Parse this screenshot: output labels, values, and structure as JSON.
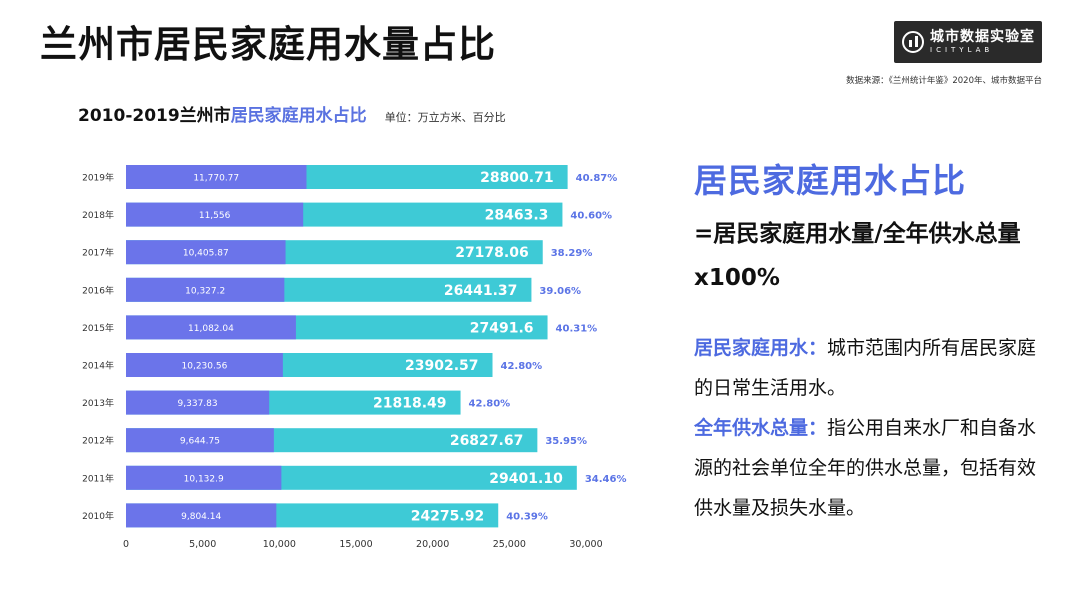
{
  "page": {
    "title": "兰州市居民家庭用水量占比",
    "source": "数据来源：《兰州统计年鉴》2020年、城市数据平台",
    "logo": {
      "cn": "城市数据实验室",
      "en": "ICITYLAB"
    }
  },
  "chart_header": {
    "prefix": "2010-2019兰州市",
    "highlight": "居民家庭用水占比",
    "unit": "单位：万立方米、百分比"
  },
  "side": {
    "title": "居民家庭用水占比",
    "formula": "=居民家庭用水量/全年供水总量x100%",
    "def1_term": "居民家庭用水：",
    "def1_text": "城市范围内所有居民家庭的日常生活用水。",
    "def2_term": "全年供水总量：",
    "def2_text": "指公用自来水厂和自备水源的社会单位全年的供水总量，包括有效供水量及损失水量。"
  },
  "colors": {
    "household": "#6b74ea",
    "total": "#3ecad6",
    "pct": "#5b74e6",
    "accent": "#4d6ae0"
  },
  "chart_data": {
    "type": "bar",
    "orientation": "horizontal",
    "categories": [
      "2019年",
      "2018年",
      "2017年",
      "2016年",
      "2015年",
      "2014年",
      "2013年",
      "2012年",
      "2011年",
      "2010年"
    ],
    "series": [
      {
        "values": [
          11770.77,
          11556,
          10405.87,
          10327.2,
          11082.04,
          10230.56,
          9337.83,
          9644.75,
          10132.9,
          9804.14
        ],
        "labels": [
          "11,770.77",
          "11,556",
          "10,405.87",
          "10,327.2",
          "11,082.04",
          "10,230.56",
          "9,337.83",
          "9,644.75",
          "10,132.9",
          "9,804.14"
        ]
      },
      {
        "values": [
          28800.71,
          28463.3,
          27178.06,
          26441.37,
          27491.6,
          23902.57,
          21818.49,
          26827.67,
          29401.1,
          24275.92
        ],
        "labels": [
          "28800.71",
          "28463.3",
          "27178.06",
          "26441.37",
          "27491.6",
          "23902.57",
          "21818.49",
          "26827.67",
          "29401.10",
          "24275.92"
        ]
      }
    ],
    "percentages": [
      "40.87%",
      "40.60%",
      "38.29%",
      "39.06%",
      "40.31%",
      "42.80%",
      "42.80%",
      "35.95%",
      "34.46%",
      "40.39%"
    ],
    "xlim": [
      0,
      30000
    ],
    "xticks": [
      0,
      5000,
      10000,
      15000,
      20000,
      25000,
      30000
    ],
    "xtick_labels": [
      "0",
      "5,000",
      "10,000",
      "15,000",
      "20,000",
      "25,000",
      "30,000"
    ],
    "grid": false
  }
}
